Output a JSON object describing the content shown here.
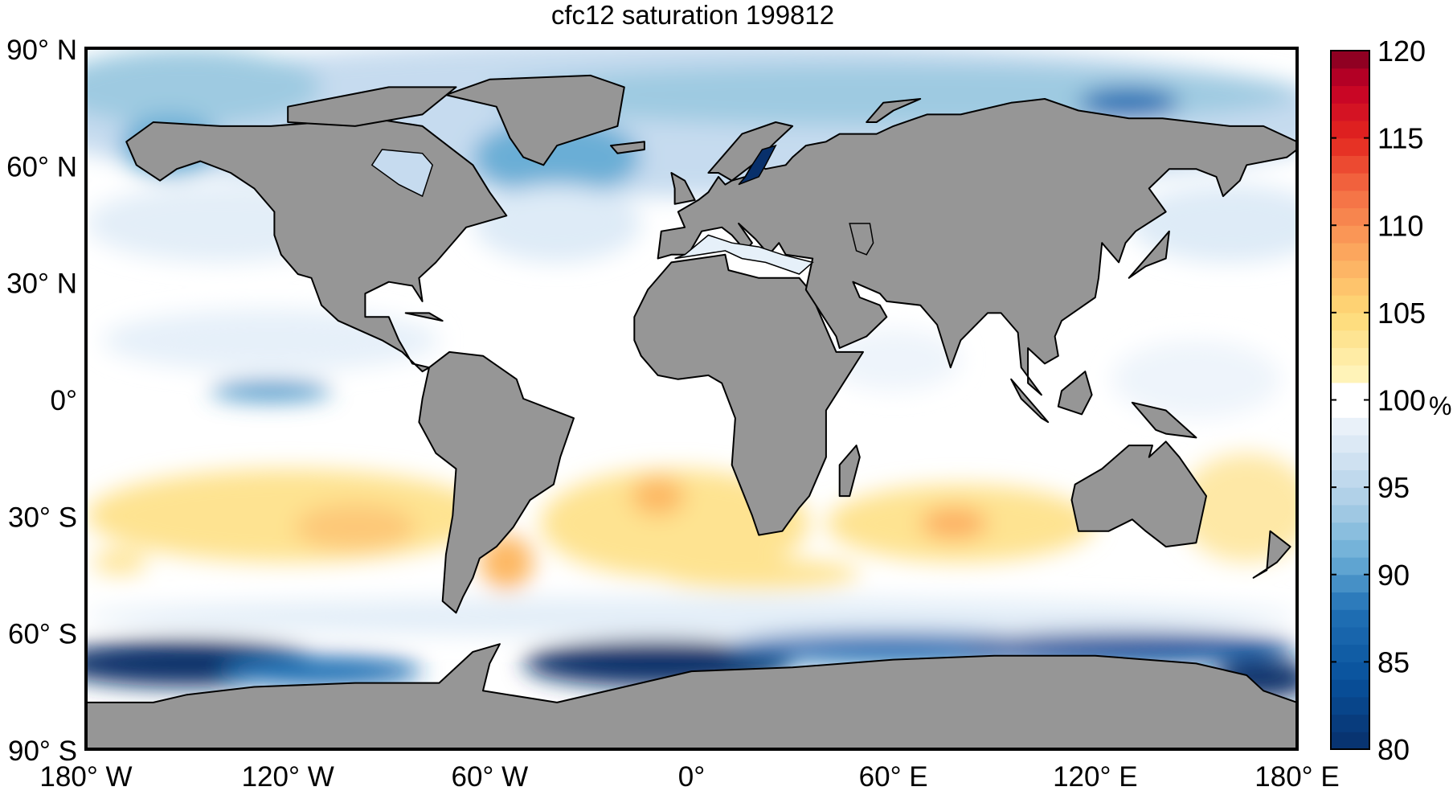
{
  "chart_data": {
    "type": "heatmap",
    "title": "cfc12 saturation 199812",
    "projection": "equirectangular",
    "xlim": [
      -180,
      180
    ],
    "ylim": [
      -90,
      90
    ],
    "x_ticks": [
      -180,
      -120,
      -60,
      0,
      60,
      120,
      180
    ],
    "x_tick_labels": [
      "180° W",
      "120° W",
      "60° W",
      "0°",
      "60° E",
      "120° E",
      "180° E"
    ],
    "y_ticks": [
      90,
      60,
      30,
      0,
      -30,
      -60,
      -90
    ],
    "y_tick_labels": [
      "90° N",
      "60° N",
      "30° N",
      "0°",
      "30° S",
      "60° S",
      "90° S"
    ],
    "land_color": "#969696",
    "coastline_color": "#000000",
    "colorbar": {
      "label": "%",
      "range": [
        80,
        120
      ],
      "ticks": [
        80,
        85,
        90,
        95,
        100,
        105,
        110,
        115,
        120
      ],
      "tick_labels": [
        "80",
        "85",
        "90",
        "95",
        "100",
        "105",
        "110",
        "115",
        "120"
      ],
      "levels": 40,
      "colormap": "reversed red-yellow-blue, white near 100",
      "colors": [
        "#08306b",
        "#2171b5",
        "#6baed6",
        "#c6dbef",
        "#ffffff",
        "#fee391",
        "#fdae61",
        "#f46d43",
        "#d7191c",
        "#7f0020"
      ]
    }
  }
}
